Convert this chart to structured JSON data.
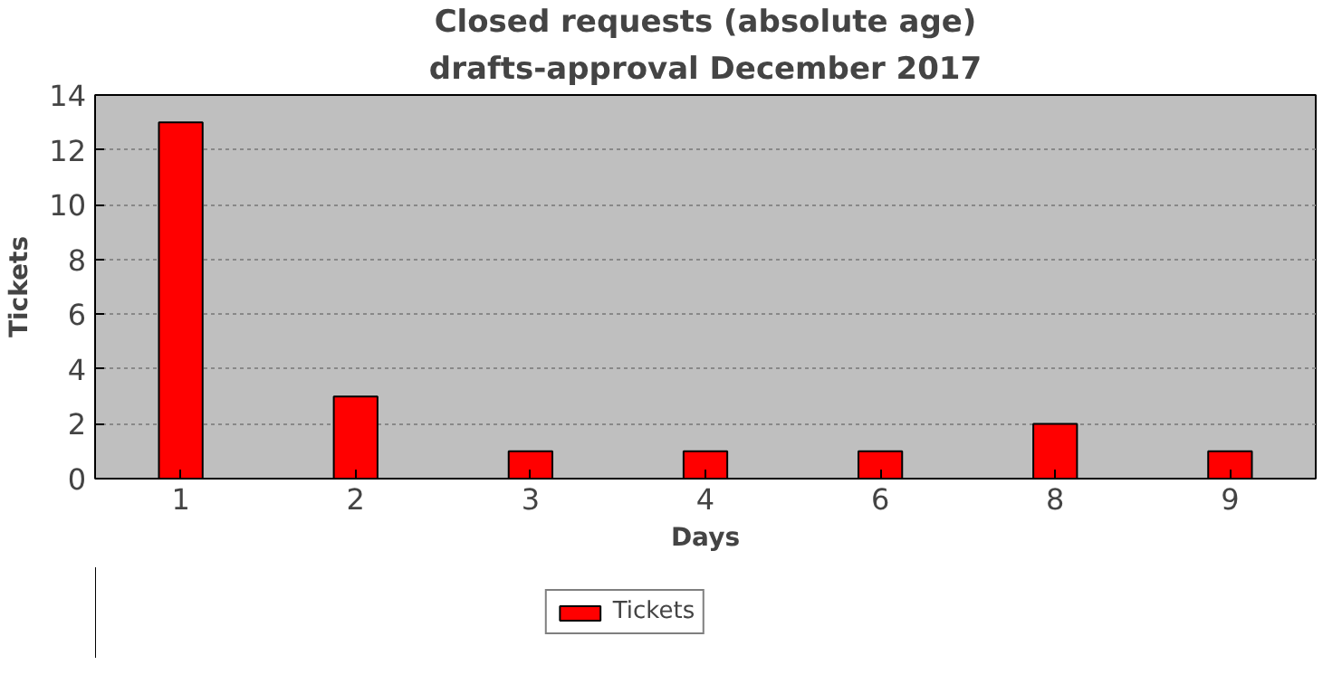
{
  "chart_data": {
    "type": "bar",
    "title": "Closed requests (absolute age)",
    "subtitle": "drafts-approval December 2017",
    "xlabel": "Days",
    "ylabel": "Tickets",
    "categories": [
      "1",
      "2",
      "3",
      "4",
      "6",
      "8",
      "9"
    ],
    "series": [
      {
        "name": "Tickets",
        "color": "#ff0000",
        "values": [
          13,
          3,
          1,
          1,
          1,
          2,
          1
        ]
      }
    ],
    "ylim": [
      0,
      14
    ],
    "yticks": [
      0,
      2,
      4,
      6,
      8,
      10,
      12,
      14
    ],
    "grid": "y",
    "legend": "bottom"
  }
}
